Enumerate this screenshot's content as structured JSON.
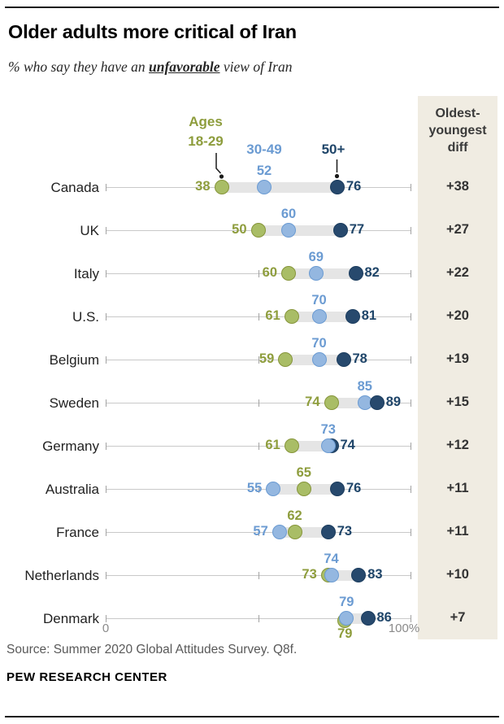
{
  "meta": {
    "title": "Older adults more critical of Iran",
    "subtitle_prefix": "% who say they have an ",
    "subtitle_emphasis": "unfavorable",
    "subtitle_suffix": " view of Iran",
    "source": "Source: Summer 2020 Global Attitudes Survey. Q8f.",
    "brand": "PEW RESEARCH CENTER"
  },
  "legend": {
    "ages_label": "Ages",
    "groups": [
      {
        "id": "18-29",
        "label": "18-29"
      },
      {
        "id": "30-49",
        "label": "30-49"
      },
      {
        "id": "50+",
        "label": "50+"
      }
    ]
  },
  "diff_column": {
    "header": "Oldest-youngest diff",
    "bg": "#f0ece2"
  },
  "axis": {
    "min_label": "0",
    "max_label": "100%",
    "min": 0,
    "max": 100
  },
  "colors": {
    "18-29": {
      "text": "#8e9d3d",
      "fill": "#a9bd66",
      "stroke": "#86953a"
    },
    "30-49": {
      "text": "#6b9bd2",
      "fill": "#94b7e0",
      "stroke": "#6b9bd2"
    },
    "50+": {
      "text": "#1f4569",
      "fill": "#27496d",
      "stroke": "#1b3c5e"
    },
    "band": "#e5e5e5",
    "axis_line": "#c9c9c9",
    "tick": "#a3a3a3",
    "diff_text": "#333333"
  },
  "chart_data": {
    "type": "scatter",
    "subtype": "dot-plot",
    "title": "Older adults more critical of Iran",
    "unit": "% unfavorable view of Iran",
    "x_range": [
      0,
      100
    ],
    "groups": [
      "Ages 18-29",
      "30-49",
      "50+"
    ],
    "rows": [
      {
        "country": "Canada",
        "diff": "+38",
        "points": [
          {
            "group": "18-29",
            "value": 38,
            "pos": "left"
          },
          {
            "group": "30-49",
            "value": 52,
            "pos": "above"
          },
          {
            "group": "50+",
            "value": 76,
            "pos": "right"
          }
        ]
      },
      {
        "country": "UK",
        "diff": "+27",
        "points": [
          {
            "group": "18-29",
            "value": 50,
            "pos": "left"
          },
          {
            "group": "30-49",
            "value": 60,
            "pos": "above"
          },
          {
            "group": "50+",
            "value": 77,
            "pos": "right"
          }
        ]
      },
      {
        "country": "Italy",
        "diff": "+22",
        "points": [
          {
            "group": "18-29",
            "value": 60,
            "pos": "left"
          },
          {
            "group": "30-49",
            "value": 69,
            "pos": "above"
          },
          {
            "group": "50+",
            "value": 82,
            "pos": "right"
          }
        ]
      },
      {
        "country": "U.S.",
        "diff": "+20",
        "points": [
          {
            "group": "18-29",
            "value": 61,
            "pos": "left"
          },
          {
            "group": "30-49",
            "value": 70,
            "pos": "above"
          },
          {
            "group": "50+",
            "value": 81,
            "pos": "right"
          }
        ]
      },
      {
        "country": "Belgium",
        "diff": "+19",
        "points": [
          {
            "group": "18-29",
            "value": 59,
            "pos": "left"
          },
          {
            "group": "30-49",
            "value": 70,
            "pos": "above"
          },
          {
            "group": "50+",
            "value": 78,
            "pos": "right"
          }
        ]
      },
      {
        "country": "Sweden",
        "diff": "+15",
        "points": [
          {
            "group": "18-29",
            "value": 74,
            "pos": "left"
          },
          {
            "group": "30-49",
            "value": 85,
            "pos": "above"
          },
          {
            "group": "50+",
            "value": 89,
            "pos": "right"
          }
        ]
      },
      {
        "country": "Germany",
        "diff": "+12",
        "points": [
          {
            "group": "18-29",
            "value": 61,
            "pos": "left"
          },
          {
            "group": "50+",
            "value": 74,
            "pos": "right"
          },
          {
            "group": "30-49",
            "value": 73,
            "pos": "above"
          }
        ]
      },
      {
        "country": "Australia",
        "diff": "+11",
        "points": [
          {
            "group": "30-49",
            "value": 55,
            "pos": "left"
          },
          {
            "group": "18-29",
            "value": 65,
            "pos": "above"
          },
          {
            "group": "50+",
            "value": 76,
            "pos": "right"
          }
        ]
      },
      {
        "country": "France",
        "diff": "+11",
        "points": [
          {
            "group": "30-49",
            "value": 57,
            "pos": "left"
          },
          {
            "group": "18-29",
            "value": 62,
            "pos": "above"
          },
          {
            "group": "50+",
            "value": 73,
            "pos": "right"
          }
        ]
      },
      {
        "country": "Netherlands",
        "diff": "+10",
        "points": [
          {
            "group": "18-29",
            "value": 73,
            "pos": "left"
          },
          {
            "group": "30-49",
            "value": 74,
            "pos": "above"
          },
          {
            "group": "50+",
            "value": 83,
            "pos": "right"
          }
        ]
      },
      {
        "country": "Denmark",
        "diff": "+7",
        "points": [
          {
            "group": "18-29",
            "value": 79,
            "pos": "below",
            "dx": -2,
            "dy": 3
          },
          {
            "group": "30-49",
            "value": 79,
            "pos": "above"
          },
          {
            "group": "50+",
            "value": 86,
            "pos": "right"
          }
        ]
      }
    ]
  }
}
